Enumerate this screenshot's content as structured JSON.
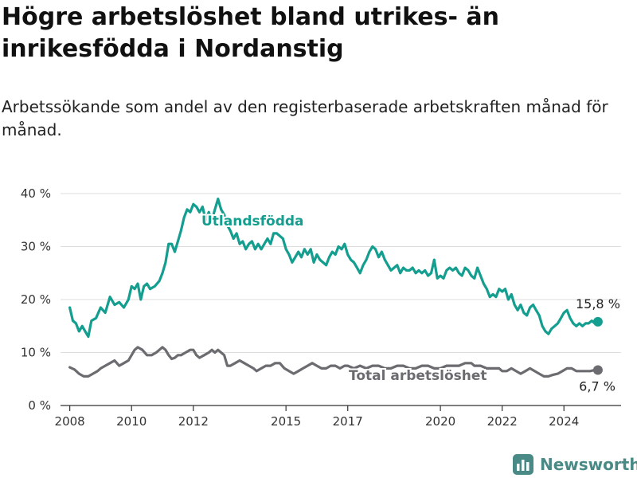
{
  "header": {
    "title": "Högre arbetslöshet bland utrikes- än inrikesfödda i Nordanstig",
    "subtitle": "Arbetssökande som andel av den registerbaserade arbetskraften månad för månad."
  },
  "brand": {
    "name": "Newsworthy",
    "color": "#4a8a86"
  },
  "colors": {
    "utlandsfodda": "#139e8f",
    "total": "#6b6b70",
    "grid": "#dddddd",
    "axis": "#333333"
  },
  "chart_data": {
    "type": "line",
    "y_tick_labels": [
      "0 %",
      "10 %",
      "20 %",
      "30 %",
      "40 %"
    ],
    "y_ticks": [
      0,
      10,
      20,
      30,
      40
    ],
    "ylim": [
      0,
      40
    ],
    "xlim": [
      2007.7,
      2025.85
    ],
    "x_tick_labels": [
      "2008",
      "2010",
      "2012",
      "2015",
      "2017",
      "2020",
      "2022",
      "2024"
    ],
    "x_ticks": [
      2008,
      2010,
      2012,
      2015,
      2017,
      2020,
      2022,
      2024
    ],
    "grid": true,
    "series": [
      {
        "name": "Utlandsfödda",
        "key": "utlandsfodda",
        "end_label": "15,8 %",
        "points": [
          [
            2008.0,
            18.5
          ],
          [
            2008.1,
            16.0
          ],
          [
            2008.2,
            15.5
          ],
          [
            2008.3,
            14.0
          ],
          [
            2008.4,
            15.0
          ],
          [
            2008.5,
            14.0
          ],
          [
            2008.6,
            13.0
          ],
          [
            2008.7,
            16.0
          ],
          [
            2008.85,
            16.5
          ],
          [
            2009.0,
            18.5
          ],
          [
            2009.15,
            17.5
          ],
          [
            2009.3,
            20.5
          ],
          [
            2009.45,
            19.0
          ],
          [
            2009.6,
            19.5
          ],
          [
            2009.75,
            18.5
          ],
          [
            2009.9,
            20.0
          ],
          [
            2010.0,
            22.5
          ],
          [
            2010.1,
            22.0
          ],
          [
            2010.2,
            23.0
          ],
          [
            2010.3,
            20.0
          ],
          [
            2010.4,
            22.5
          ],
          [
            2010.5,
            23.0
          ],
          [
            2010.6,
            22.0
          ],
          [
            2010.75,
            22.5
          ],
          [
            2010.9,
            23.5
          ],
          [
            2011.0,
            25.0
          ],
          [
            2011.1,
            27.0
          ],
          [
            2011.2,
            30.5
          ],
          [
            2011.3,
            30.5
          ],
          [
            2011.4,
            29.0
          ],
          [
            2011.5,
            31.0
          ],
          [
            2011.6,
            33.0
          ],
          [
            2011.7,
            35.5
          ],
          [
            2011.8,
            37.0
          ],
          [
            2011.9,
            36.5
          ],
          [
            2012.0,
            38.0
          ],
          [
            2012.1,
            37.5
          ],
          [
            2012.2,
            36.5
          ],
          [
            2012.3,
            37.5
          ],
          [
            2012.4,
            35.0
          ],
          [
            2012.5,
            36.5
          ],
          [
            2012.6,
            35.0
          ],
          [
            2012.7,
            37.0
          ],
          [
            2012.8,
            39.0
          ],
          [
            2012.9,
            37.0
          ],
          [
            2013.0,
            36.0
          ],
          [
            2013.1,
            34.0
          ],
          [
            2013.2,
            33.0
          ],
          [
            2013.3,
            31.5
          ],
          [
            2013.4,
            32.5
          ],
          [
            2013.5,
            30.5
          ],
          [
            2013.6,
            31.0
          ],
          [
            2013.7,
            29.5
          ],
          [
            2013.8,
            30.5
          ],
          [
            2013.9,
            31.0
          ],
          [
            2014.0,
            29.5
          ],
          [
            2014.1,
            30.5
          ],
          [
            2014.2,
            29.5
          ],
          [
            2014.3,
            30.5
          ],
          [
            2014.4,
            31.5
          ],
          [
            2014.5,
            30.5
          ],
          [
            2014.6,
            32.5
          ],
          [
            2014.7,
            32.5
          ],
          [
            2014.8,
            32.0
          ],
          [
            2014.9,
            31.5
          ],
          [
            2015.0,
            29.5
          ],
          [
            2015.1,
            28.5
          ],
          [
            2015.2,
            27.0
          ],
          [
            2015.3,
            28.0
          ],
          [
            2015.4,
            29.0
          ],
          [
            2015.5,
            28.0
          ],
          [
            2015.6,
            29.5
          ],
          [
            2015.7,
            28.5
          ],
          [
            2015.8,
            29.5
          ],
          [
            2015.9,
            27.0
          ],
          [
            2016.0,
            28.5
          ],
          [
            2016.1,
            27.5
          ],
          [
            2016.2,
            27.0
          ],
          [
            2016.3,
            26.5
          ],
          [
            2016.4,
            28.0
          ],
          [
            2016.5,
            29.0
          ],
          [
            2016.6,
            28.5
          ],
          [
            2016.7,
            30.0
          ],
          [
            2016.8,
            29.5
          ],
          [
            2016.9,
            30.5
          ],
          [
            2017.0,
            28.5
          ],
          [
            2017.1,
            27.5
          ],
          [
            2017.2,
            27.0
          ],
          [
            2017.3,
            26.0
          ],
          [
            2017.4,
            25.0
          ],
          [
            2017.5,
            26.5
          ],
          [
            2017.6,
            27.5
          ],
          [
            2017.7,
            29.0
          ],
          [
            2017.8,
            30.0
          ],
          [
            2017.9,
            29.5
          ],
          [
            2018.0,
            28.0
          ],
          [
            2018.1,
            29.0
          ],
          [
            2018.2,
            27.5
          ],
          [
            2018.3,
            26.5
          ],
          [
            2018.4,
            25.5
          ],
          [
            2018.5,
            26.0
          ],
          [
            2018.6,
            26.5
          ],
          [
            2018.7,
            25.0
          ],
          [
            2018.8,
            26.0
          ],
          [
            2018.9,
            25.5
          ],
          [
            2019.0,
            25.5
          ],
          [
            2019.1,
            26.0
          ],
          [
            2019.2,
            25.0
          ],
          [
            2019.3,
            25.5
          ],
          [
            2019.4,
            25.0
          ],
          [
            2019.5,
            25.5
          ],
          [
            2019.6,
            24.5
          ],
          [
            2019.7,
            25.0
          ],
          [
            2019.8,
            27.5
          ],
          [
            2019.9,
            24.0
          ],
          [
            2020.0,
            24.5
          ],
          [
            2020.1,
            24.0
          ],
          [
            2020.2,
            25.5
          ],
          [
            2020.3,
            26.0
          ],
          [
            2020.4,
            25.5
          ],
          [
            2020.5,
            26.0
          ],
          [
            2020.6,
            25.0
          ],
          [
            2020.7,
            24.5
          ],
          [
            2020.8,
            26.0
          ],
          [
            2020.9,
            25.5
          ],
          [
            2021.0,
            24.5
          ],
          [
            2021.1,
            24.0
          ],
          [
            2021.2,
            26.0
          ],
          [
            2021.3,
            24.5
          ],
          [
            2021.4,
            23.0
          ],
          [
            2021.5,
            22.0
          ],
          [
            2021.6,
            20.5
          ],
          [
            2021.7,
            21.0
          ],
          [
            2021.8,
            20.5
          ],
          [
            2021.9,
            22.0
          ],
          [
            2022.0,
            21.5
          ],
          [
            2022.1,
            22.0
          ],
          [
            2022.2,
            20.0
          ],
          [
            2022.3,
            21.0
          ],
          [
            2022.4,
            19.0
          ],
          [
            2022.5,
            18.0
          ],
          [
            2022.6,
            19.0
          ],
          [
            2022.7,
            17.5
          ],
          [
            2022.8,
            17.0
          ],
          [
            2022.9,
            18.5
          ],
          [
            2023.0,
            19.0
          ],
          [
            2023.1,
            18.0
          ],
          [
            2023.2,
            17.0
          ],
          [
            2023.3,
            15.0
          ],
          [
            2023.4,
            14.0
          ],
          [
            2023.5,
            13.5
          ],
          [
            2023.6,
            14.5
          ],
          [
            2023.7,
            15.0
          ],
          [
            2023.8,
            15.5
          ],
          [
            2023.9,
            16.5
          ],
          [
            2024.0,
            17.5
          ],
          [
            2024.1,
            18.0
          ],
          [
            2024.2,
            16.5
          ],
          [
            2024.3,
            15.5
          ],
          [
            2024.4,
            15.0
          ],
          [
            2024.5,
            15.5
          ],
          [
            2024.6,
            15.0
          ],
          [
            2024.7,
            15.5
          ],
          [
            2024.8,
            15.5
          ],
          [
            2024.9,
            16.0
          ],
          [
            2025.0,
            15.5
          ],
          [
            2025.1,
            15.8
          ]
        ]
      },
      {
        "name": "Total arbetslöshet",
        "key": "total",
        "end_label": "6,7 %",
        "points": [
          [
            2008.0,
            7.2
          ],
          [
            2008.15,
            6.8
          ],
          [
            2008.3,
            6.0
          ],
          [
            2008.45,
            5.5
          ],
          [
            2008.6,
            5.5
          ],
          [
            2008.75,
            6.0
          ],
          [
            2008.9,
            6.5
          ],
          [
            2009.0,
            7.0
          ],
          [
            2009.15,
            7.5
          ],
          [
            2009.3,
            8.0
          ],
          [
            2009.45,
            8.5
          ],
          [
            2009.6,
            7.5
          ],
          [
            2009.75,
            8.0
          ],
          [
            2009.9,
            8.5
          ],
          [
            2010.0,
            9.5
          ],
          [
            2010.1,
            10.5
          ],
          [
            2010.2,
            11.0
          ],
          [
            2010.35,
            10.5
          ],
          [
            2010.5,
            9.5
          ],
          [
            2010.65,
            9.5
          ],
          [
            2010.8,
            10.0
          ],
          [
            2010.9,
            10.5
          ],
          [
            2011.0,
            11.0
          ],
          [
            2011.1,
            10.5
          ],
          [
            2011.2,
            9.5
          ],
          [
            2011.3,
            8.8
          ],
          [
            2011.4,
            9.0
          ],
          [
            2011.5,
            9.5
          ],
          [
            2011.6,
            9.5
          ],
          [
            2011.75,
            10.0
          ],
          [
            2011.9,
            10.5
          ],
          [
            2012.0,
            10.5
          ],
          [
            2012.1,
            9.5
          ],
          [
            2012.2,
            9.0
          ],
          [
            2012.35,
            9.5
          ],
          [
            2012.5,
            10.0
          ],
          [
            2012.6,
            10.5
          ],
          [
            2012.7,
            10.0
          ],
          [
            2012.8,
            10.5
          ],
          [
            2012.9,
            10.0
          ],
          [
            2013.0,
            9.5
          ],
          [
            2013.1,
            7.5
          ],
          [
            2013.2,
            7.5
          ],
          [
            2013.35,
            8.0
          ],
          [
            2013.5,
            8.5
          ],
          [
            2013.65,
            8.0
          ],
          [
            2013.8,
            7.5
          ],
          [
            2013.95,
            7.0
          ],
          [
            2014.05,
            6.5
          ],
          [
            2014.2,
            7.0
          ],
          [
            2014.35,
            7.5
          ],
          [
            2014.5,
            7.5
          ],
          [
            2014.65,
            8.0
          ],
          [
            2014.8,
            8.0
          ],
          [
            2014.95,
            7.0
          ],
          [
            2015.1,
            6.5
          ],
          [
            2015.25,
            6.0
          ],
          [
            2015.4,
            6.5
          ],
          [
            2015.55,
            7.0
          ],
          [
            2015.7,
            7.5
          ],
          [
            2015.85,
            8.0
          ],
          [
            2016.0,
            7.5
          ],
          [
            2016.15,
            7.0
          ],
          [
            2016.3,
            7.0
          ],
          [
            2016.45,
            7.5
          ],
          [
            2016.6,
            7.5
          ],
          [
            2016.75,
            7.0
          ],
          [
            2016.9,
            7.5
          ],
          [
            2017.0,
            7.5
          ],
          [
            2017.2,
            7.0
          ],
          [
            2017.4,
            7.5
          ],
          [
            2017.6,
            7.0
          ],
          [
            2017.8,
            7.5
          ],
          [
            2018.0,
            7.5
          ],
          [
            2018.2,
            7.0
          ],
          [
            2018.4,
            7.0
          ],
          [
            2018.6,
            7.5
          ],
          [
            2018.8,
            7.5
          ],
          [
            2019.0,
            7.0
          ],
          [
            2019.2,
            7.0
          ],
          [
            2019.4,
            7.5
          ],
          [
            2019.6,
            7.5
          ],
          [
            2019.8,
            7.0
          ],
          [
            2020.0,
            7.0
          ],
          [
            2020.2,
            7.5
          ],
          [
            2020.4,
            7.5
          ],
          [
            2020.6,
            7.5
          ],
          [
            2020.8,
            8.0
          ],
          [
            2021.0,
            8.0
          ],
          [
            2021.1,
            7.5
          ],
          [
            2021.3,
            7.5
          ],
          [
            2021.5,
            7.0
          ],
          [
            2021.7,
            7.0
          ],
          [
            2021.9,
            7.0
          ],
          [
            2022.0,
            6.5
          ],
          [
            2022.15,
            6.5
          ],
          [
            2022.3,
            7.0
          ],
          [
            2022.45,
            6.5
          ],
          [
            2022.6,
            6.0
          ],
          [
            2022.75,
            6.5
          ],
          [
            2022.9,
            7.0
          ],
          [
            2023.05,
            6.5
          ],
          [
            2023.2,
            6.0
          ],
          [
            2023.35,
            5.5
          ],
          [
            2023.5,
            5.5
          ],
          [
            2023.65,
            5.8
          ],
          [
            2023.8,
            6.0
          ],
          [
            2023.95,
            6.5
          ],
          [
            2024.1,
            7.0
          ],
          [
            2024.25,
            7.0
          ],
          [
            2024.4,
            6.5
          ],
          [
            2024.55,
            6.5
          ],
          [
            2024.7,
            6.5
          ],
          [
            2024.85,
            6.5
          ],
          [
            2025.0,
            6.7
          ],
          [
            2025.1,
            6.7
          ]
        ]
      }
    ]
  }
}
